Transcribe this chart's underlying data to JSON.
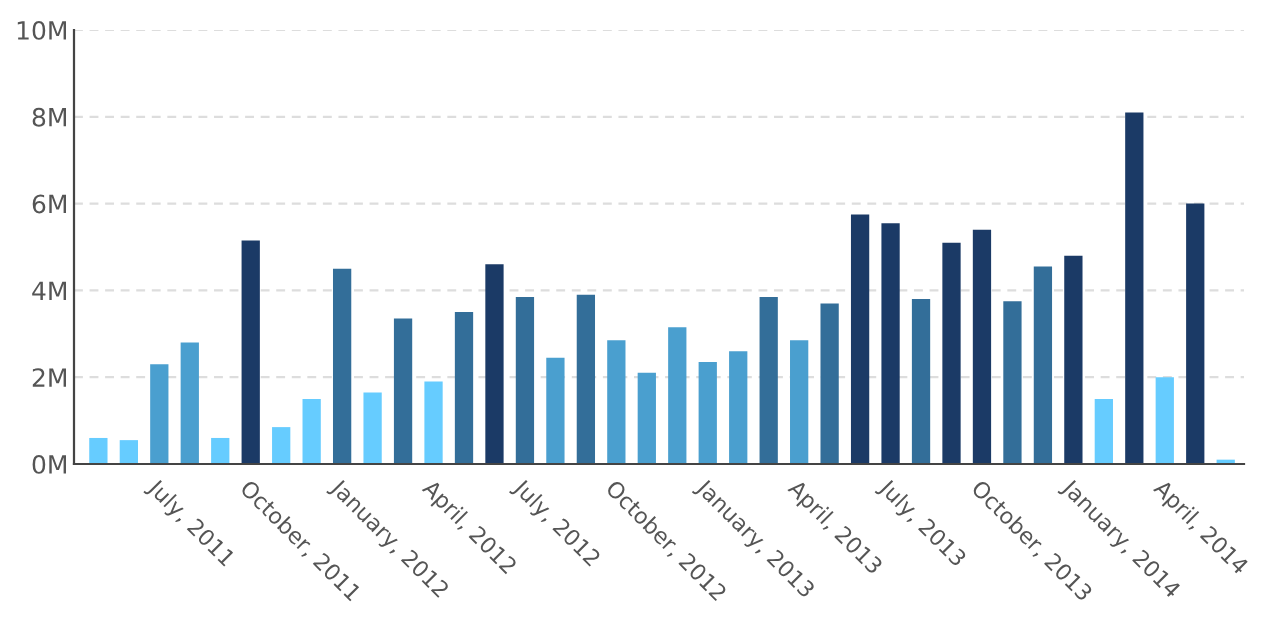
{
  "chart_data": {
    "type": "bar",
    "categories": [
      null,
      null,
      "July, 2011",
      null,
      null,
      "October, 2011",
      null,
      null,
      "January, 2012",
      null,
      null,
      "April, 2012",
      null,
      null,
      "July, 2012",
      null,
      null,
      "October, 2012",
      null,
      null,
      "January, 2013",
      null,
      null,
      "April, 2013",
      null,
      null,
      "July, 2013",
      null,
      null,
      "October, 2013",
      null,
      null,
      "January, 2014",
      null,
      null,
      "April, 2014",
      null,
      null
    ],
    "values": [
      0.6,
      0.55,
      2.3,
      2.8,
      0.6,
      5.15,
      0.85,
      1.5,
      4.5,
      1.65,
      3.35,
      1.9,
      3.5,
      4.6,
      3.85,
      2.45,
      3.9,
      2.85,
      2.1,
      3.15,
      2.35,
      2.6,
      3.85,
      2.85,
      3.7,
      5.75,
      5.55,
      3.8,
      5.1,
      5.4,
      3.75,
      4.55,
      4.8,
      1.5,
      8.1,
      2.0,
      6.0,
      0.1
    ],
    "colors": [
      "#66ccff",
      "#66ccff",
      "#4a9fcf",
      "#4a9fcf",
      "#66ccff",
      "#1b3a66",
      "#66ccff",
      "#66ccff",
      "#336e99",
      "#66ccff",
      "#336e99",
      "#66ccff",
      "#336e99",
      "#1b3a66",
      "#336e99",
      "#4a9fcf",
      "#336e99",
      "#4a9fcf",
      "#4a9fcf",
      "#4a9fcf",
      "#4a9fcf",
      "#4a9fcf",
      "#336e99",
      "#4a9fcf",
      "#336e99",
      "#1b3a66",
      "#1b3a66",
      "#336e99",
      "#1b3a66",
      "#1b3a66",
      "#336e99",
      "#336e99",
      "#1b3a66",
      "#66ccff",
      "#1b3a66",
      "#66ccff",
      "#1b3a66",
      "#66ccff"
    ],
    "ylim": [
      0,
      10
    ],
    "yticks": [
      {
        "value": 0,
        "label": "0M"
      },
      {
        "value": 2,
        "label": "2M"
      },
      {
        "value": 4,
        "label": "4M"
      },
      {
        "value": 6,
        "label": "6M"
      },
      {
        "value": 8,
        "label": "8M"
      },
      {
        "value": 10,
        "label": "10M"
      }
    ],
    "grid": "y",
    "legend": false
  }
}
